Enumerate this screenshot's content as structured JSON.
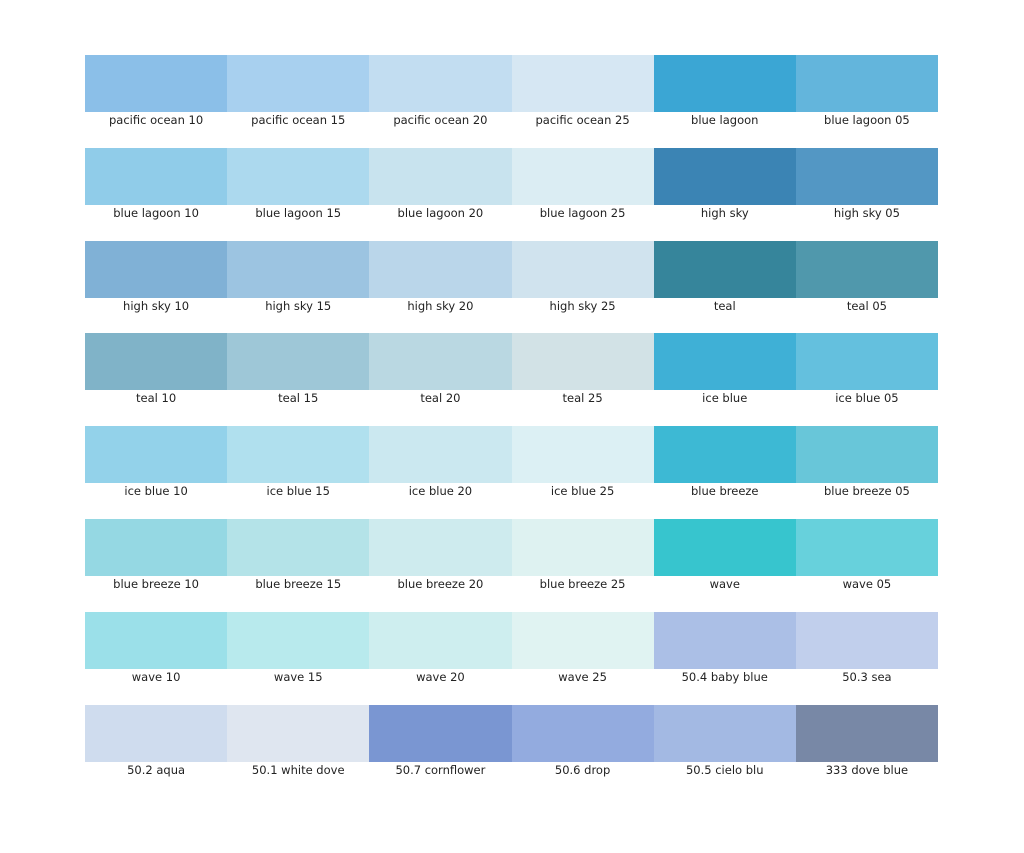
{
  "rows": [
    [
      {
        "label": "pacific ocean 10",
        "color": "#8bbfe8"
      },
      {
        "label": "pacific ocean 15",
        "color": "#a8d0ef"
      },
      {
        "label": "pacific ocean 20",
        "color": "#c2ddf1"
      },
      {
        "label": "pacific ocean 25",
        "color": "#d6e7f3"
      },
      {
        "label": "blue lagoon",
        "color": "#3ba6d4"
      },
      {
        "label": "blue lagoon 05",
        "color": "#63b5dc"
      }
    ],
    [
      {
        "label": "blue lagoon 10",
        "color": "#90cce9"
      },
      {
        "label": "blue lagoon 15",
        "color": "#acd9ee"
      },
      {
        "label": "blue lagoon 20",
        "color": "#c8e3ee"
      },
      {
        "label": "blue lagoon 25",
        "color": "#dbedf3"
      },
      {
        "label": "high sky",
        "color": "#3b84b4"
      },
      {
        "label": "high sky 05",
        "color": "#5397c4"
      }
    ],
    [
      {
        "label": "high sky 10",
        "color": "#80b1d6"
      },
      {
        "label": "high sky 15",
        "color": "#9cc4e1"
      },
      {
        "label": "high sky 20",
        "color": "#bad6ea"
      },
      {
        "label": "high sky 25",
        "color": "#d0e3ee"
      },
      {
        "label": "teal",
        "color": "#36859b"
      },
      {
        "label": "teal 05",
        "color": "#5098ac"
      }
    ],
    [
      {
        "label": "teal 10",
        "color": "#80b3c8"
      },
      {
        "label": "teal 15",
        "color": "#9ec7d7"
      },
      {
        "label": "teal 20",
        "color": "#bad8e2"
      },
      {
        "label": "teal 25",
        "color": "#d2e2e6"
      },
      {
        "label": "ice blue",
        "color": "#3fb0d6"
      },
      {
        "label": "ice blue 05",
        "color": "#64c0de"
      }
    ],
    [
      {
        "label": "ice blue 10",
        "color": "#93d2ea"
      },
      {
        "label": "ice blue 15",
        "color": "#b0e0ee"
      },
      {
        "label": "ice blue 20",
        "color": "#cbe8f0"
      },
      {
        "label": "ice blue 25",
        "color": "#dcf0f4"
      },
      {
        "label": "blue breeze",
        "color": "#3db9d4"
      },
      {
        "label": "blue breeze 05",
        "color": "#68c6d9"
      }
    ],
    [
      {
        "label": "blue breeze 10",
        "color": "#95d8e3"
      },
      {
        "label": "blue breeze 15",
        "color": "#b4e3e8"
      },
      {
        "label": "blue breeze 20",
        "color": "#ceebee"
      },
      {
        "label": "blue breeze 25",
        "color": "#def2f1"
      },
      {
        "label": "wave",
        "color": "#37c5ce"
      },
      {
        "label": "wave 05",
        "color": "#67d1dc"
      }
    ],
    [
      {
        "label": "wave 10",
        "color": "#9be0e9"
      },
      {
        "label": "wave 15",
        "color": "#b8eaed"
      },
      {
        "label": "wave 20",
        "color": "#ceeeef"
      },
      {
        "label": "wave 25",
        "color": "#e0f3f2"
      },
      {
        "label": "50.4 baby blue",
        "color": "#abbfe6"
      },
      {
        "label": "50.3 sea",
        "color": "#c1cfec"
      }
    ],
    [
      {
        "label": "50.2 aqua",
        "color": "#cfdcee"
      },
      {
        "label": "50.1 white dove",
        "color": "#dfe6f0"
      },
      {
        "label": "50.7 cornflower",
        "color": "#7a96d2"
      },
      {
        "label": "50.6 drop",
        "color": "#93abdf"
      },
      {
        "label": "50.5 cielo blu",
        "color": "#a3b9e3"
      },
      {
        "label": "333 dove blue",
        "color": "#7888a6"
      }
    ]
  ]
}
